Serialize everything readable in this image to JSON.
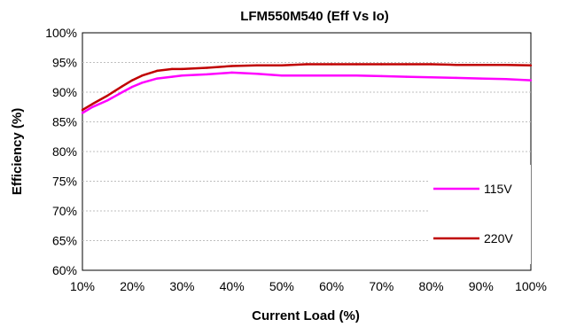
{
  "chart_data": {
    "type": "line",
    "title": "LFM550M540 (Eff Vs Io)",
    "xlabel": "Current Load (%)",
    "ylabel": "Efficiency (%)",
    "x": [
      10,
      12,
      15,
      18,
      20,
      22,
      25,
      28,
      30,
      35,
      40,
      45,
      50,
      55,
      60,
      65,
      70,
      75,
      80,
      85,
      90,
      95,
      100
    ],
    "x_ticks": [
      "10%",
      "20%",
      "30%",
      "40%",
      "50%",
      "60%",
      "70%",
      "80%",
      "90%",
      "100%"
    ],
    "y_ticks": [
      "60%",
      "65%",
      "70%",
      "75%",
      "80%",
      "85%",
      "90%",
      "95%",
      "100%"
    ],
    "xlim": [
      10,
      100
    ],
    "ylim": [
      60,
      100
    ],
    "grid": "horizontal",
    "legend_position": "right",
    "series": [
      {
        "name": "115V",
        "color": "#ff00ff",
        "values": [
          86.5,
          87.5,
          88.6,
          90.0,
          90.9,
          91.6,
          92.3,
          92.6,
          92.8,
          93.0,
          93.3,
          93.1,
          92.8,
          92.8,
          92.8,
          92.8,
          92.7,
          92.6,
          92.5,
          92.4,
          92.3,
          92.2,
          92.0
        ]
      },
      {
        "name": "220V",
        "color": "#c00000",
        "values": [
          87.0,
          88.0,
          89.4,
          91.0,
          92.0,
          92.8,
          93.6,
          93.9,
          93.9,
          94.1,
          94.4,
          94.5,
          94.5,
          94.7,
          94.7,
          94.7,
          94.7,
          94.7,
          94.7,
          94.6,
          94.6,
          94.6,
          94.5
        ]
      }
    ]
  }
}
